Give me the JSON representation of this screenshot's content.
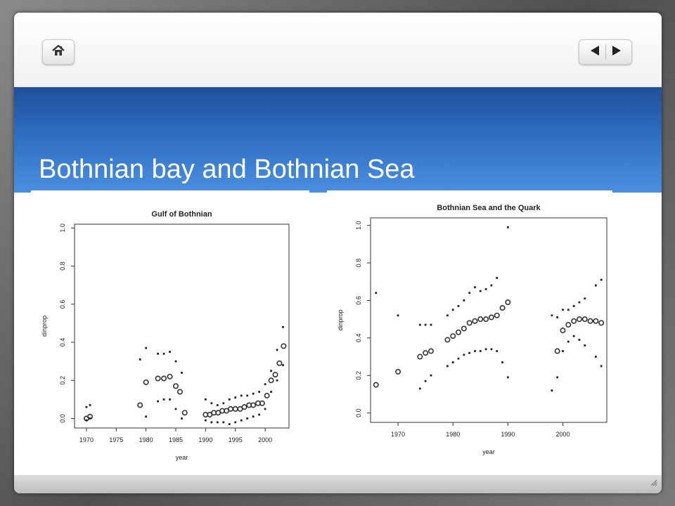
{
  "slide": {
    "title": "Bothnian bay and Bothnian Sea"
  },
  "nav": {
    "home_icon": "home-icon",
    "prev_icon": "triangle-left-icon",
    "next_icon": "triangle-right-icon"
  },
  "colors": {
    "band_top": "#1f4f9a",
    "band_bottom": "#4b8fe0",
    "title_text": "#ffffff"
  },
  "chart_data": [
    {
      "type": "scatter",
      "title": "Gulf of Bothnian",
      "xlabel": "year",
      "ylabel": "dinprop",
      "xlim": [
        1968,
        2004
      ],
      "ylim": [
        -0.05,
        1.02
      ],
      "xticks": [
        "1970",
        "1975",
        "1980",
        "1985",
        "1990",
        "1995",
        "2000"
      ],
      "yticks": [
        "0.0",
        "0.2",
        "0.4",
        "0.6",
        "0.8",
        "1.0"
      ],
      "series": [
        {
          "marker": "open-circle",
          "x": [
            1970,
            1970.6,
            1979,
            1980,
            1982,
            1983,
            1984,
            1985,
            1985.7,
            1986.5,
            1990,
            1990.7,
            1991.4,
            1992.1,
            1992.8,
            1993.5,
            1994.2,
            1995,
            1995.8,
            1996.5,
            1997.3,
            1998,
            1998.8,
            1999.5,
            2000.3,
            2001,
            2001.7,
            2002.4,
            2003.1
          ],
          "y": [
            0.0,
            0.01,
            0.07,
            0.19,
            0.21,
            0.21,
            0.22,
            0.17,
            0.14,
            0.03,
            0.02,
            0.02,
            0.03,
            0.03,
            0.04,
            0.04,
            0.05,
            0.05,
            0.05,
            0.06,
            0.07,
            0.07,
            0.08,
            0.08,
            0.12,
            0.2,
            0.23,
            0.29,
            0.38
          ]
        },
        {
          "marker": "dot-upper",
          "x": [
            1970,
            1970.6,
            1979,
            1980,
            1982,
            1983,
            1984,
            1985,
            1986,
            1990,
            1991,
            1992,
            1993,
            1994,
            1995,
            1996,
            1997,
            1998,
            1999,
            2000,
            2001,
            2002,
            2003
          ],
          "y": [
            0.06,
            0.07,
            0.31,
            0.37,
            0.34,
            0.34,
            0.35,
            0.3,
            0.24,
            0.1,
            0.08,
            0.07,
            0.08,
            0.1,
            0.11,
            0.12,
            0.12,
            0.13,
            0.14,
            0.18,
            0.25,
            0.36,
            0.48
          ]
        },
        {
          "marker": "dot-lower",
          "x": [
            1970,
            1970.6,
            1980,
            1982,
            1983,
            1984,
            1985,
            1986,
            1990,
            1991,
            1992,
            1993,
            1994,
            1995,
            1996,
            1997,
            1998,
            1999,
            2000,
            2001,
            2002,
            2003
          ],
          "y": [
            -0.01,
            0.0,
            0.01,
            0.09,
            0.1,
            0.1,
            0.05,
            0.0,
            -0.01,
            -0.02,
            -0.02,
            -0.02,
            -0.03,
            -0.02,
            -0.01,
            0.0,
            0.01,
            0.02,
            0.05,
            0.14,
            0.2,
            0.28
          ]
        }
      ]
    },
    {
      "type": "scatter",
      "title": "Bothnian Sea and the Quark",
      "xlabel": "year",
      "ylabel": "dinprop",
      "xlim": [
        1965,
        2008
      ],
      "ylim": [
        -0.05,
        1.04
      ],
      "xticks": [
        "1970",
        "1980",
        "1990",
        "2000"
      ],
      "yticks": [
        "0.0",
        "0.2",
        "0.4",
        "0.6",
        "0.8",
        "1.0"
      ],
      "series": [
        {
          "marker": "open-circle",
          "x": [
            1966,
            1970,
            1974,
            1975,
            1976,
            1979,
            1980,
            1981,
            1982,
            1983,
            1984,
            1985,
            1986,
            1987,
            1988,
            1989,
            1990,
            1999,
            2000,
            2001,
            2002,
            2003,
            2004,
            2005,
            2006,
            2007
          ],
          "y": [
            0.15,
            0.22,
            0.3,
            0.32,
            0.33,
            0.39,
            0.41,
            0.43,
            0.45,
            0.48,
            0.49,
            0.5,
            0.5,
            0.51,
            0.52,
            0.56,
            0.59,
            0.33,
            0.44,
            0.47,
            0.49,
            0.5,
            0.5,
            0.49,
            0.49,
            0.48
          ]
        },
        {
          "marker": "dot-upper",
          "x": [
            1966,
            1970,
            1974,
            1975,
            1976,
            1979,
            1980,
            1981,
            1982,
            1983,
            1984,
            1985,
            1986,
            1987,
            1988,
            1990,
            1998,
            1999,
            2000,
            2001,
            2002,
            2003,
            2004,
            2006,
            2007
          ],
          "y": [
            0.64,
            0.52,
            0.47,
            0.47,
            0.47,
            0.52,
            0.55,
            0.57,
            0.6,
            0.64,
            0.67,
            0.65,
            0.66,
            0.68,
            0.72,
            0.99,
            0.52,
            0.51,
            0.55,
            0.55,
            0.57,
            0.59,
            0.61,
            0.68,
            0.71
          ]
        },
        {
          "marker": "dot-lower",
          "x": [
            1974,
            1975,
            1976,
            1979,
            1980,
            1981,
            1982,
            1983,
            1984,
            1985,
            1986,
            1987,
            1988,
            1989,
            1990,
            1998,
            1999,
            2000,
            2001,
            2002,
            2003,
            2004,
            2006,
            2007
          ],
          "y": [
            0.13,
            0.17,
            0.2,
            0.25,
            0.27,
            0.29,
            0.31,
            0.32,
            0.33,
            0.33,
            0.34,
            0.34,
            0.33,
            0.27,
            0.19,
            0.12,
            0.19,
            0.33,
            0.38,
            0.41,
            0.39,
            0.36,
            0.3,
            0.25
          ]
        }
      ]
    }
  ]
}
